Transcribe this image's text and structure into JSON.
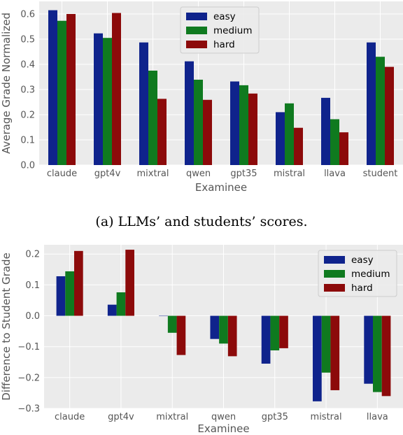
{
  "caption": "(a) LLMs’ and students’ scores.",
  "colors": {
    "easy": "#0f238c",
    "medium": "#0f7a1f",
    "hard": "#8c0a0a",
    "panel_bg": "#ebebeb",
    "grid": "#ffffff"
  },
  "chart_data": [
    {
      "type": "bar",
      "xlabel": "Examinee",
      "ylabel": "Average Grade Normalized",
      "ylim": [
        0,
        0.65
      ],
      "yticks": [
        0.0,
        0.1,
        0.2,
        0.3,
        0.4,
        0.5,
        0.6
      ],
      "ytick_labels": [
        "0.0",
        "0.1",
        "0.2",
        "0.3",
        "0.4",
        "0.5",
        "0.6"
      ],
      "categories": [
        "claude",
        "gpt4v",
        "mixtral",
        "qwen",
        "gpt35",
        "mistral",
        "llava",
        "student"
      ],
      "series": [
        {
          "name": "easy",
          "values": [
            0.615,
            0.523,
            0.487,
            0.412,
            0.332,
            0.21,
            0.267,
            0.487
          ]
        },
        {
          "name": "medium",
          "values": [
            0.573,
            0.505,
            0.375,
            0.339,
            0.317,
            0.245,
            0.182,
            0.43
          ]
        },
        {
          "name": "hard",
          "values": [
            0.6,
            0.604,
            0.263,
            0.259,
            0.284,
            0.148,
            0.13,
            0.39
          ]
        }
      ],
      "legend_position": "top-center",
      "grid": true
    },
    {
      "type": "bar",
      "xlabel": "Examinee",
      "ylabel": "Difference to Student Grade",
      "ylim": [
        -0.3,
        0.23
      ],
      "yticks": [
        -0.3,
        -0.2,
        -0.1,
        0.0,
        0.1,
        0.2
      ],
      "ytick_labels": [
        "−0.3",
        "−0.2",
        "−0.1",
        "0.0",
        "0.1",
        "0.2"
      ],
      "categories": [
        "claude",
        "gpt4v",
        "mixtral",
        "qwen",
        "gpt35",
        "mistral",
        "llava"
      ],
      "series": [
        {
          "name": "easy",
          "values": [
            0.128,
            0.036,
            -0.001,
            -0.075,
            -0.155,
            -0.277,
            -0.22
          ]
        },
        {
          "name": "medium",
          "values": [
            0.144,
            0.076,
            -0.055,
            -0.09,
            -0.112,
            -0.184,
            -0.247
          ]
        },
        {
          "name": "hard",
          "values": [
            0.21,
            0.214,
            -0.127,
            -0.131,
            -0.105,
            -0.241,
            -0.26
          ]
        }
      ],
      "legend_position": "top-right",
      "grid": true
    }
  ]
}
